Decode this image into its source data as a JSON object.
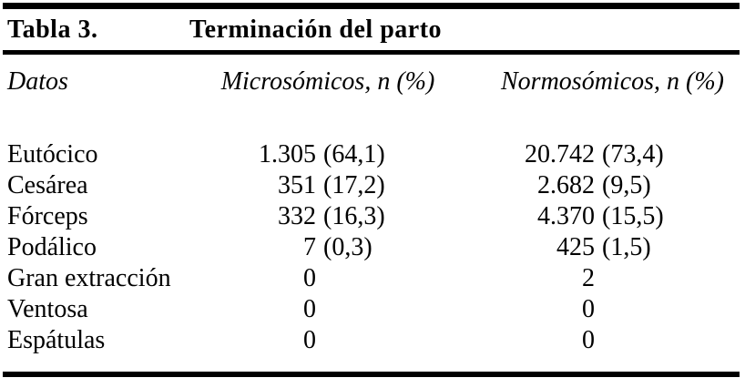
{
  "table": {
    "number_label": "Tabla 3.",
    "title": "Terminación del parto",
    "columns": [
      "Datos",
      "Microsómicos, n (%)",
      "Normosómicos, n (%)"
    ],
    "rows": [
      {
        "label": "Eutócico",
        "micro_n": "1.305",
        "micro_pct": "(64,1)",
        "normo_n": "20.742",
        "normo_pct": "(73,4)"
      },
      {
        "label": "Cesárea",
        "micro_n": "351",
        "micro_pct": "(17,2)",
        "normo_n": "2.682",
        "normo_pct": "(9,5)"
      },
      {
        "label": "Fórceps",
        "micro_n": "332",
        "micro_pct": "(16,3)",
        "normo_n": "4.370",
        "normo_pct": "(15,5)"
      },
      {
        "label": "Podálico",
        "micro_n": "7",
        "micro_pct": "(0,3)",
        "normo_n": "425",
        "normo_pct": "(1,5)"
      },
      {
        "label": "Gran extracción",
        "micro_n": "0",
        "micro_pct": "",
        "normo_n": "2",
        "normo_pct": ""
      },
      {
        "label": "Ventosa",
        "micro_n": "0",
        "micro_pct": "",
        "normo_n": "0",
        "normo_pct": ""
      },
      {
        "label": "Espátulas",
        "micro_n": "0",
        "micro_pct": "",
        "normo_n": "0",
        "normo_pct": ""
      }
    ],
    "colors": {
      "text": "#000000",
      "background": "#ffffff",
      "rule": "#000000"
    }
  },
  "chart_data": {
    "type": "table",
    "title": "Tabla 3. Terminación del parto",
    "columns": [
      "Datos",
      "Microsómicos, n (%)",
      "Normosómicos, n (%)"
    ],
    "rows": [
      [
        "Eutócico",
        "1.305 (64,1)",
        "20.742 (73,4)"
      ],
      [
        "Cesárea",
        "351 (17,2)",
        "2.682 (9,5)"
      ],
      [
        "Fórceps",
        "332 (16,3)",
        "4.370 (15,5)"
      ],
      [
        "Podálico",
        "7 (0,3)",
        "425 (1,5)"
      ],
      [
        "Gran extracción",
        "0",
        "2"
      ],
      [
        "Ventosa",
        "0",
        "0"
      ],
      [
        "Espátulas",
        "0",
        "0"
      ]
    ]
  }
}
